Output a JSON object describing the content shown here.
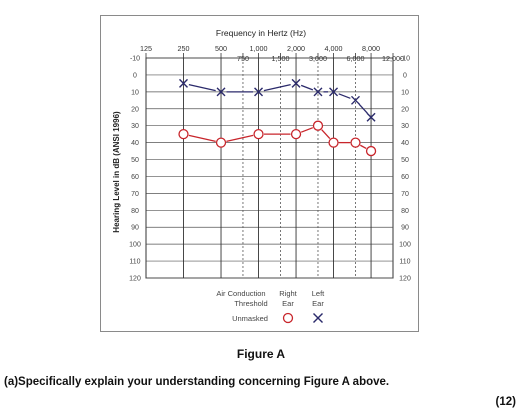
{
  "chart_data": {
    "type": "line",
    "title": "Frequency in Hertz (Hz)",
    "ylabel": "Hearing Level in dB (ANSI 1996)",
    "xlabel": "",
    "x_ticks_top": [
      "125",
      "250",
      "500",
      "1,000",
      "2,000",
      "4,000",
      "8,000"
    ],
    "x_ticks_bottom": [
      "750",
      "1,500",
      "3,000",
      "6,000",
      "12,000"
    ],
    "ylim": [
      -10,
      120
    ],
    "y_ticks": [
      -10,
      0,
      10,
      20,
      30,
      40,
      50,
      60,
      70,
      80,
      90,
      100,
      110,
      120
    ],
    "y_inverted": true,
    "grid": true,
    "series": [
      {
        "name": "Left Ear",
        "marker": "x",
        "color": "#2b2a6b",
        "x": [
          250,
          500,
          1000,
          2000,
          3000,
          4000,
          6000,
          8000
        ],
        "values": [
          5,
          10,
          10,
          5,
          10,
          10,
          15,
          25
        ]
      },
      {
        "name": "Right Ear",
        "marker": "o",
        "color": "#c8252b",
        "x": [
          250,
          500,
          1000,
          2000,
          3000,
          4000,
          6000,
          8000
        ],
        "values": [
          35,
          40,
          35,
          35,
          30,
          40,
          40,
          45
        ]
      }
    ],
    "legend": {
      "col1_line1": "Air Conduction",
      "col1_line2": "Threshold",
      "col2_line1": "Right",
      "col2_line2": "Ear",
      "col3_line1": "Left",
      "col3_line2": "Ear",
      "row_label": "Unmasked",
      "placement": "bottom"
    }
  },
  "caption": "Figure A",
  "question": "(a)Specifically explain your understanding concerning Figure A above.",
  "marks": "(12)"
}
